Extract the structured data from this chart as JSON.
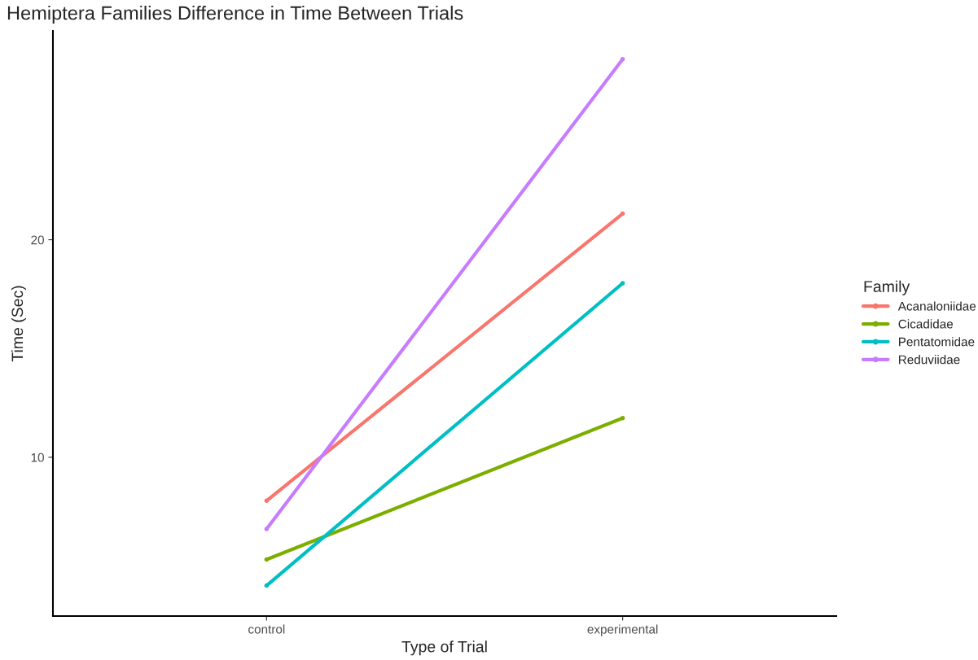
{
  "chart_data": {
    "type": "line",
    "title": "Hemiptera Families Difference in Time Between Trials",
    "xlabel": "Type of Trial",
    "ylabel": "Time (Sec)",
    "legend_title": "Family",
    "categories": [
      "control",
      "experimental"
    ],
    "series": [
      {
        "name": "Acanaloniidae",
        "color": "#f8766d",
        "values": [
          8.0,
          21.2
        ]
      },
      {
        "name": "Cicadidae",
        "color": "#7cae00",
        "values": [
          5.3,
          11.8
        ]
      },
      {
        "name": "Pentatomidae",
        "color": "#00bfc4",
        "values": [
          4.1,
          18.0
        ]
      },
      {
        "name": "Reduviidae",
        "color": "#c77cff",
        "values": [
          6.7,
          28.3
        ]
      }
    ],
    "ylim": [
      2.7,
      29.6
    ],
    "yticks": [
      10,
      20
    ],
    "grid": false,
    "legend": "right",
    "marker": "circle",
    "line_style": "solid"
  }
}
